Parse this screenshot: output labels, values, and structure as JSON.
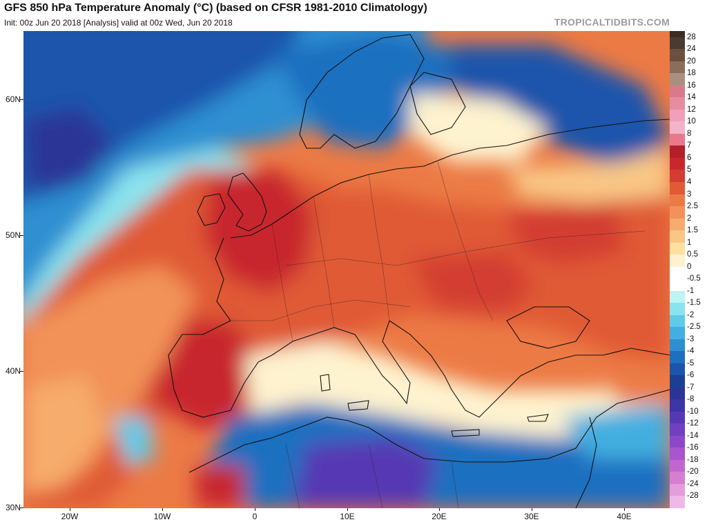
{
  "header": {
    "title": "GFS 850 hPa Temperature Anomaly (°C) (based on CFSR 1981-2010 Climatology)",
    "subtitle": "Init: 00z Jun 20 2018   [Analysis]   valid at 00z Wed, Jun 20 2018",
    "brand": "TROPICALTIDBITS.COM"
  },
  "map": {
    "lat_range": [
      30,
      65
    ],
    "lon_range": [
      -25,
      45
    ],
    "lat_ticks": [
      "60N",
      "50N",
      "40N",
      "30N"
    ],
    "lat_tick_values": [
      60,
      50,
      40,
      30
    ],
    "lon_ticks": [
      "20W",
      "10W",
      "0",
      "10E",
      "20E",
      "30E",
      "40E"
    ],
    "lon_tick_values": [
      -20,
      -10,
      0,
      10,
      20,
      30,
      40
    ]
  },
  "colorbar": {
    "labels": [
      "28",
      "24",
      "20",
      "18",
      "16",
      "14",
      "12",
      "10",
      "8",
      "7",
      "6",
      "5",
      "4",
      "3",
      "2.5",
      "2",
      "1.5",
      "1",
      "0.5",
      "0",
      "-0.5",
      "-1",
      "-1.5",
      "-2",
      "-2.5",
      "-3",
      "-4",
      "-5",
      "-6",
      "-7",
      "-8",
      "-10",
      "-12",
      "-14",
      "-16",
      "-18",
      "-20",
      "-24",
      "-28"
    ],
    "colors": [
      "#4a3a30",
      "#6b4f3f",
      "#8c6d5a",
      "#a89080",
      "#d87a8a",
      "#e68ca0",
      "#f0a0b8",
      "#f3b3c9",
      "#e9788c",
      "#b3202a",
      "#c8282d",
      "#d33c30",
      "#e05a35",
      "#ec7a45",
      "#f29258",
      "#f6ac6c",
      "#f9c785",
      "#fbe0a0",
      "#fef3cf",
      "#ffffff",
      "#ffffff",
      "#bff4f4",
      "#8ae4ee",
      "#5fcbe9",
      "#42afe0",
      "#2d8fd1",
      "#1f6fc0",
      "#1a55ab",
      "#1a3f95",
      "#2b3596",
      "#3d35a6",
      "#5638b4",
      "#7040c0",
      "#8c48c8",
      "#a855ce",
      "#c266cf",
      "#d67fd2",
      "#e49cdb",
      "#f0b8e6"
    ]
  }
}
